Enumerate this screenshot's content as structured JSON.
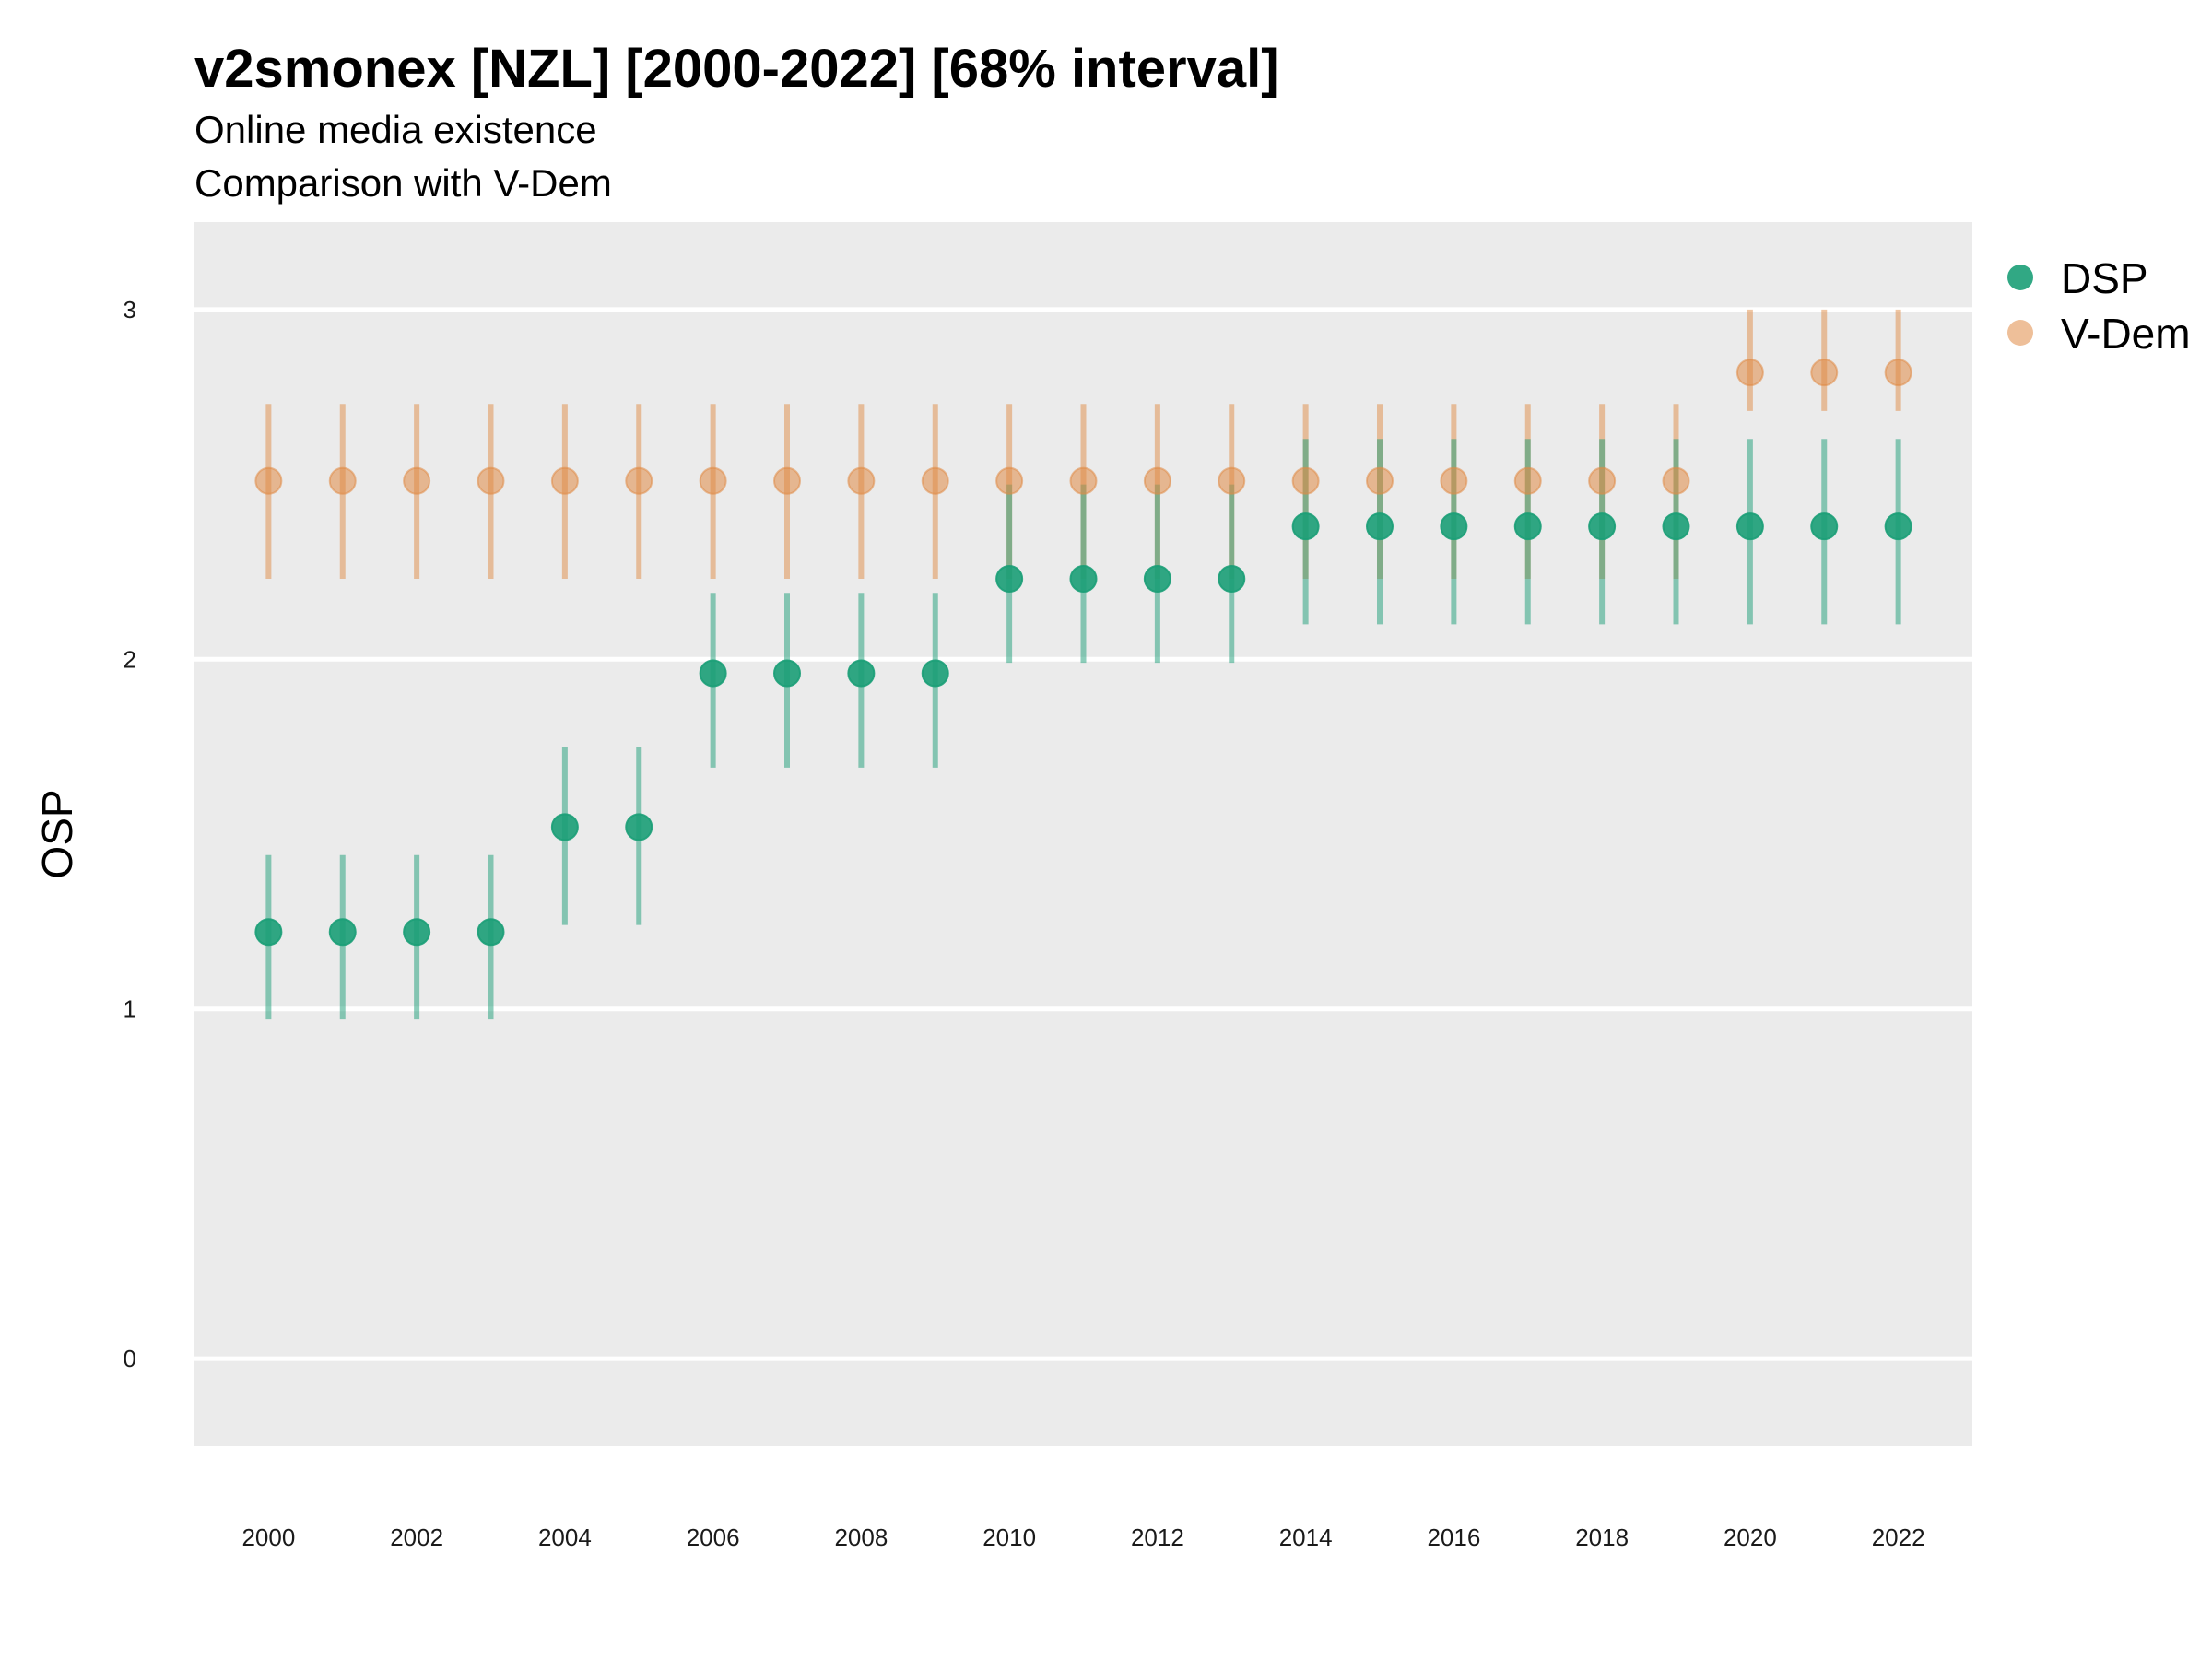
{
  "chart_data": {
    "type": "scatter",
    "title": "v2smonex [NZL] [2000-2022] [68% interval]",
    "subtitle_lines": [
      "Online media existence",
      "Comparison with V-Dem"
    ],
    "ylabel": "OSP",
    "xlabel": "",
    "x": [
      2000,
      2001,
      2002,
      2003,
      2004,
      2005,
      2006,
      2007,
      2008,
      2009,
      2010,
      2011,
      2012,
      2013,
      2014,
      2015,
      2016,
      2017,
      2018,
      2019,
      2020,
      2021,
      2022
    ],
    "x_ticks": [
      "2000",
      "2002",
      "2004",
      "2006",
      "2008",
      "2010",
      "2012",
      "2014",
      "2016",
      "2018",
      "2020",
      "2022"
    ],
    "y_ticks": [
      "0",
      "1",
      "2",
      "3"
    ],
    "xlim": [
      1999.0,
      2023.0
    ],
    "ylim": [
      -0.25,
      3.25
    ],
    "grid": "horizontal major only",
    "legend_position": "right",
    "series": [
      {
        "name": "DSP",
        "color": "#1b9e77",
        "values": [
          1.22,
          1.22,
          1.22,
          1.22,
          1.52,
          1.52,
          1.96,
          1.96,
          1.96,
          1.96,
          2.23,
          2.23,
          2.23,
          2.23,
          2.38,
          2.38,
          2.38,
          2.38,
          2.38,
          2.38,
          2.38,
          2.38,
          2.38
        ],
        "lower": [
          0.97,
          0.97,
          0.97,
          0.97,
          1.24,
          1.24,
          1.69,
          1.69,
          1.69,
          1.69,
          1.99,
          1.99,
          1.99,
          1.99,
          2.1,
          2.1,
          2.1,
          2.1,
          2.1,
          2.1,
          2.1,
          2.1,
          2.1
        ],
        "upper": [
          1.44,
          1.44,
          1.44,
          1.44,
          1.75,
          1.75,
          2.19,
          2.19,
          2.19,
          2.19,
          2.5,
          2.5,
          2.5,
          2.5,
          2.63,
          2.63,
          2.63,
          2.63,
          2.63,
          2.63,
          2.63,
          2.63,
          2.63
        ]
      },
      {
        "name": "V-Dem",
        "color": "#e08b45",
        "values": [
          2.51,
          2.51,
          2.51,
          2.51,
          2.51,
          2.51,
          2.51,
          2.51,
          2.51,
          2.51,
          2.51,
          2.51,
          2.51,
          2.51,
          2.51,
          2.51,
          2.51,
          2.51,
          2.51,
          2.51,
          2.82,
          2.82,
          2.82
        ],
        "lower": [
          2.23,
          2.23,
          2.23,
          2.23,
          2.23,
          2.23,
          2.23,
          2.23,
          2.23,
          2.23,
          2.23,
          2.23,
          2.23,
          2.23,
          2.23,
          2.23,
          2.23,
          2.23,
          2.23,
          2.23,
          2.71,
          2.71,
          2.71
        ],
        "upper": [
          2.73,
          2.73,
          2.73,
          2.73,
          2.73,
          2.73,
          2.73,
          2.73,
          2.73,
          2.73,
          2.73,
          2.73,
          2.73,
          2.73,
          2.73,
          2.73,
          2.73,
          2.73,
          2.73,
          2.73,
          3.0,
          3.0,
          3.0
        ]
      }
    ]
  }
}
